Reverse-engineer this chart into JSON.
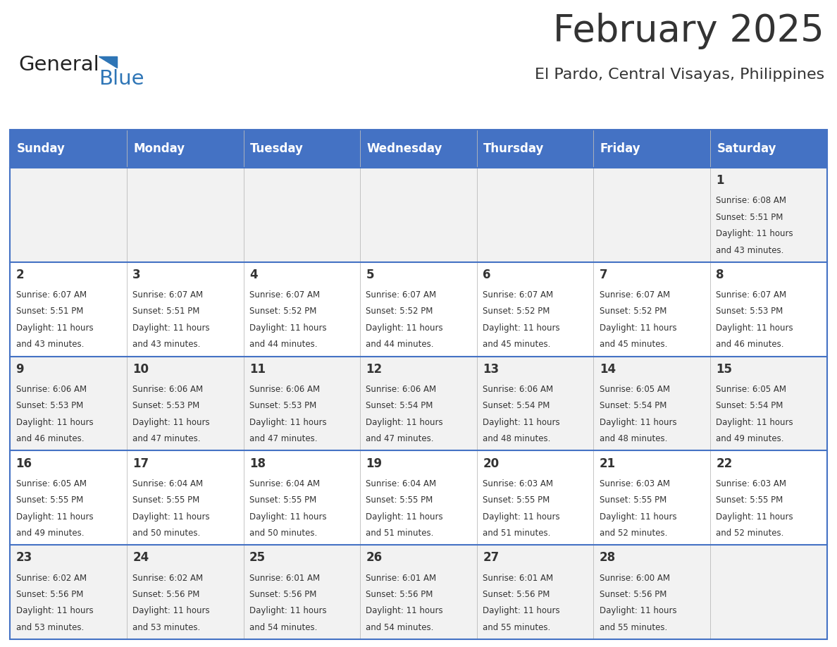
{
  "title": "February 2025",
  "subtitle": "El Pardo, Central Visayas, Philippines",
  "days_of_week": [
    "Sunday",
    "Monday",
    "Tuesday",
    "Wednesday",
    "Thursday",
    "Friday",
    "Saturday"
  ],
  "header_bg": "#4472C4",
  "header_text": "#FFFFFF",
  "row_bg_odd": "#F2F2F2",
  "row_bg_even": "#FFFFFF",
  "cell_text_color": "#333333",
  "day_number_color": "#333333",
  "border_color": "#4472C4",
  "divider_color": "#BBBBBB",
  "logo_general_color": "#222222",
  "logo_blue_color": "#2E75B6",
  "title_color": "#333333",
  "calendar_data": [
    [
      null,
      null,
      null,
      null,
      null,
      null,
      {
        "day": 1,
        "sunrise": "6:08 AM",
        "sunset": "5:51 PM",
        "hours": 11,
        "minutes": 43
      }
    ],
    [
      {
        "day": 2,
        "sunrise": "6:07 AM",
        "sunset": "5:51 PM",
        "hours": 11,
        "minutes": 43
      },
      {
        "day": 3,
        "sunrise": "6:07 AM",
        "sunset": "5:51 PM",
        "hours": 11,
        "minutes": 43
      },
      {
        "day": 4,
        "sunrise": "6:07 AM",
        "sunset": "5:52 PM",
        "hours": 11,
        "minutes": 44
      },
      {
        "day": 5,
        "sunrise": "6:07 AM",
        "sunset": "5:52 PM",
        "hours": 11,
        "minutes": 44
      },
      {
        "day": 6,
        "sunrise": "6:07 AM",
        "sunset": "5:52 PM",
        "hours": 11,
        "minutes": 45
      },
      {
        "day": 7,
        "sunrise": "6:07 AM",
        "sunset": "5:52 PM",
        "hours": 11,
        "minutes": 45
      },
      {
        "day": 8,
        "sunrise": "6:07 AM",
        "sunset": "5:53 PM",
        "hours": 11,
        "minutes": 46
      }
    ],
    [
      {
        "day": 9,
        "sunrise": "6:06 AM",
        "sunset": "5:53 PM",
        "hours": 11,
        "minutes": 46
      },
      {
        "day": 10,
        "sunrise": "6:06 AM",
        "sunset": "5:53 PM",
        "hours": 11,
        "minutes": 47
      },
      {
        "day": 11,
        "sunrise": "6:06 AM",
        "sunset": "5:53 PM",
        "hours": 11,
        "minutes": 47
      },
      {
        "day": 12,
        "sunrise": "6:06 AM",
        "sunset": "5:54 PM",
        "hours": 11,
        "minutes": 47
      },
      {
        "day": 13,
        "sunrise": "6:06 AM",
        "sunset": "5:54 PM",
        "hours": 11,
        "minutes": 48
      },
      {
        "day": 14,
        "sunrise": "6:05 AM",
        "sunset": "5:54 PM",
        "hours": 11,
        "minutes": 48
      },
      {
        "day": 15,
        "sunrise": "6:05 AM",
        "sunset": "5:54 PM",
        "hours": 11,
        "minutes": 49
      }
    ],
    [
      {
        "day": 16,
        "sunrise": "6:05 AM",
        "sunset": "5:55 PM",
        "hours": 11,
        "minutes": 49
      },
      {
        "day": 17,
        "sunrise": "6:04 AM",
        "sunset": "5:55 PM",
        "hours": 11,
        "minutes": 50
      },
      {
        "day": 18,
        "sunrise": "6:04 AM",
        "sunset": "5:55 PM",
        "hours": 11,
        "minutes": 50
      },
      {
        "day": 19,
        "sunrise": "6:04 AM",
        "sunset": "5:55 PM",
        "hours": 11,
        "minutes": 51
      },
      {
        "day": 20,
        "sunrise": "6:03 AM",
        "sunset": "5:55 PM",
        "hours": 11,
        "minutes": 51
      },
      {
        "day": 21,
        "sunrise": "6:03 AM",
        "sunset": "5:55 PM",
        "hours": 11,
        "minutes": 52
      },
      {
        "day": 22,
        "sunrise": "6:03 AM",
        "sunset": "5:55 PM",
        "hours": 11,
        "minutes": 52
      }
    ],
    [
      {
        "day": 23,
        "sunrise": "6:02 AM",
        "sunset": "5:56 PM",
        "hours": 11,
        "minutes": 53
      },
      {
        "day": 24,
        "sunrise": "6:02 AM",
        "sunset": "5:56 PM",
        "hours": 11,
        "minutes": 53
      },
      {
        "day": 25,
        "sunrise": "6:01 AM",
        "sunset": "5:56 PM",
        "hours": 11,
        "minutes": 54
      },
      {
        "day": 26,
        "sunrise": "6:01 AM",
        "sunset": "5:56 PM",
        "hours": 11,
        "minutes": 54
      },
      {
        "day": 27,
        "sunrise": "6:01 AM",
        "sunset": "5:56 PM",
        "hours": 11,
        "minutes": 55
      },
      {
        "day": 28,
        "sunrise": "6:00 AM",
        "sunset": "5:56 PM",
        "hours": 11,
        "minutes": 55
      },
      null
    ]
  ]
}
